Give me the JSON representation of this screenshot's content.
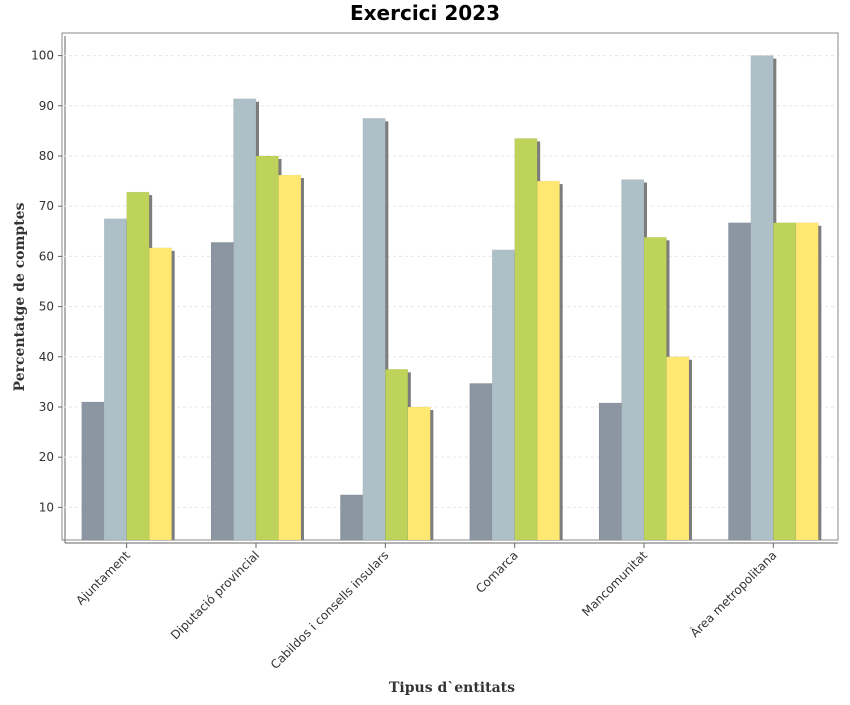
{
  "chart_data": {
    "type": "bar",
    "title": "Exercici 2023",
    "xlabel": "Tipus d`entitats",
    "ylabel": "Percentatge de comptes",
    "categories": [
      "Ajuntament",
      "Diputació provincial",
      "Cabildos i consells insulars",
      "Comarca",
      "Mancomunitat",
      "Àrea metropolitana"
    ],
    "series": [
      {
        "color": "#8c96a2",
        "shadow": false,
        "values": [
          31,
          62.8,
          12.5,
          34.7,
          30.8,
          66.7
        ]
      },
      {
        "color": "#adc0c8",
        "shadow": true,
        "values": [
          67.5,
          91.4,
          87.5,
          61.3,
          75.3,
          100
        ]
      },
      {
        "color": "#bed35a",
        "shadow": true,
        "values": [
          72.8,
          80,
          37.5,
          83.5,
          63.8,
          66.7
        ]
      },
      {
        "color": "#ffe872",
        "shadow": true,
        "values": [
          61.7,
          76.2,
          30,
          75,
          40,
          66.7
        ]
      }
    ],
    "yticks": [
      10,
      20,
      30,
      40,
      50,
      60,
      70,
      80,
      90,
      100
    ],
    "ylim": [
      3.5,
      104.5
    ],
    "grid": true,
    "legend": "none"
  }
}
